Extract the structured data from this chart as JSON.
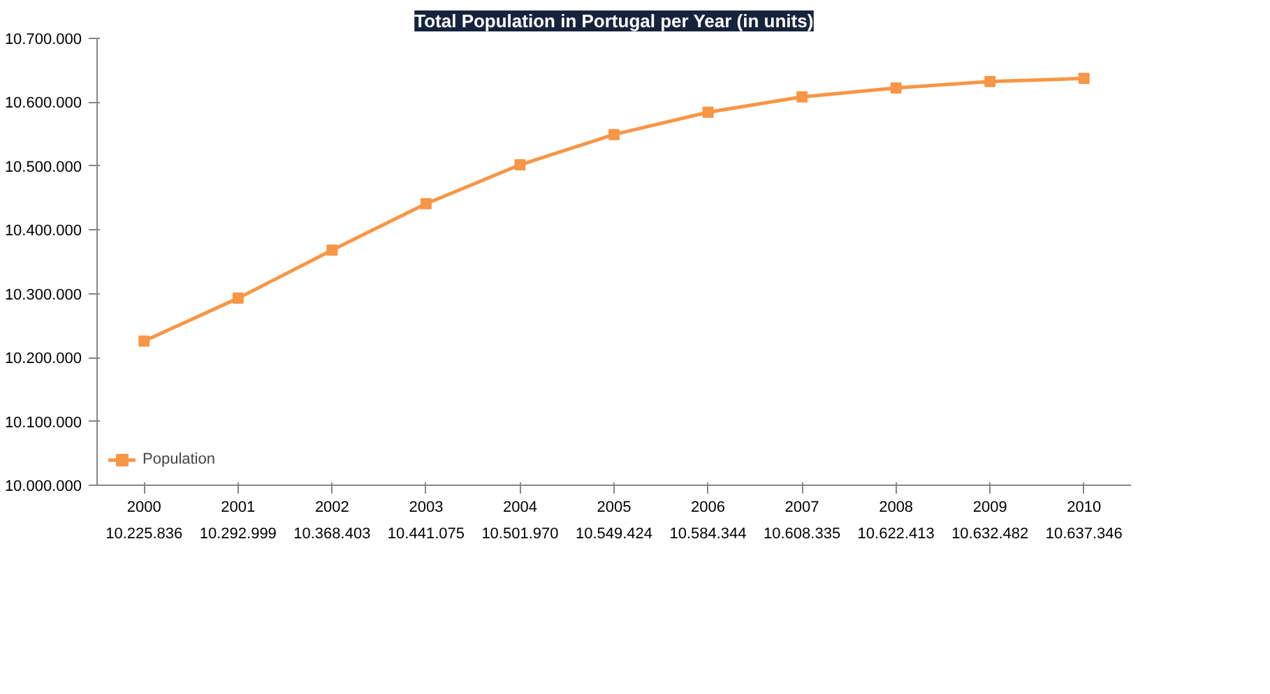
{
  "chart_data": {
    "type": "line",
    "title": "Total Population in Portugal per Year (in units)",
    "categories": [
      "2000",
      "2001",
      "2002",
      "2003",
      "2004",
      "2005",
      "2006",
      "2007",
      "2008",
      "2009",
      "2010"
    ],
    "series": [
      {
        "name": "Population",
        "color": "#f79646",
        "values": [
          10225836,
          10292999,
          10368403,
          10441075,
          10501970,
          10549424,
          10584344,
          10608335,
          10622413,
          10632482,
          10637346
        ],
        "value_labels": [
          "10.225.836",
          "10.292.999",
          "10.368.403",
          "10.441.075",
          "10.501.970",
          "10.549.424",
          "10.584.344",
          "10.608.335",
          "10.622.413",
          "10.632.482",
          "10.637.346"
        ]
      }
    ],
    "ylim": [
      10000000,
      10700000
    ],
    "yticks": [
      {
        "value": 10000000,
        "label": "10.000.000"
      },
      {
        "value": 10100000,
        "label": "10.100.000"
      },
      {
        "value": 10200000,
        "label": "10.200.000"
      },
      {
        "value": 10300000,
        "label": "10.300.000"
      },
      {
        "value": 10400000,
        "label": "10.400.000"
      },
      {
        "value": 10500000,
        "label": "10.500.000"
      },
      {
        "value": 10600000,
        "label": "10.600.000"
      },
      {
        "value": 10700000,
        "label": "10.700.000"
      }
    ],
    "grid": false,
    "legend": "bottom left",
    "marker": "square",
    "line_style": "solid"
  }
}
